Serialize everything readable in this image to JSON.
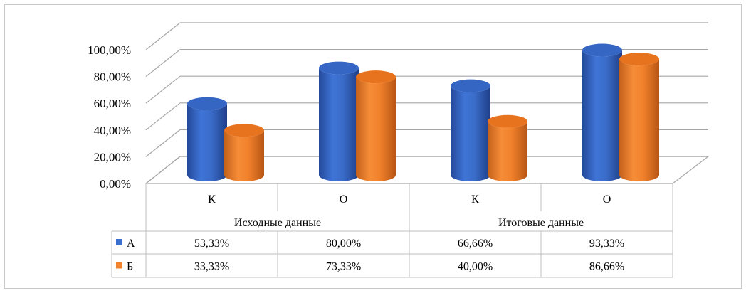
{
  "chart_data": {
    "type": "bar",
    "style": "3d-cylinder",
    "groups": [
      "Исходные данные",
      "Итоговые данные"
    ],
    "categories": [
      "К",
      "О",
      "К",
      "О"
    ],
    "series": [
      {
        "name": "А",
        "color": "#3b6fcf",
        "values": [
          53.33,
          80.0,
          66.66,
          93.33
        ],
        "labels": [
          "53,33%",
          "80,00%",
          "66,66%",
          "93,33%"
        ]
      },
      {
        "name": "Б",
        "color": "#f2832c",
        "values": [
          33.33,
          73.33,
          40.0,
          86.66
        ],
        "labels": [
          "33,33%",
          "73,33%",
          "40,00%",
          "86,66%"
        ]
      }
    ],
    "yticks": [
      "0,00%",
      "20,00%",
      "40,00%",
      "60,00%",
      "80,00%",
      "100,00%"
    ],
    "ylim": [
      0,
      100
    ],
    "grid": true,
    "legend": "data-table"
  }
}
